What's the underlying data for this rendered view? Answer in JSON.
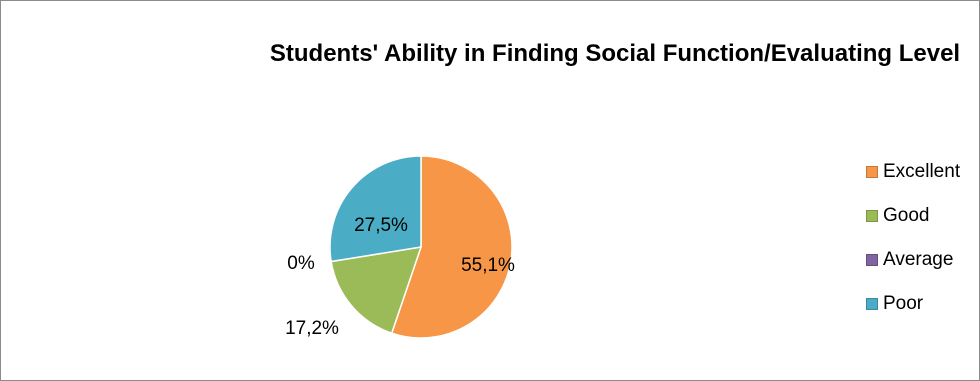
{
  "chart_data": {
    "type": "pie",
    "title": "Students' Ability in Finding Social Function/Evaluating Level",
    "categories": [
      "Excellent",
      "Good",
      "Average",
      "Poor"
    ],
    "values": [
      55.1,
      17.2,
      0,
      27.5
    ],
    "data_labels": [
      "55,1%",
      "17,2%",
      "0%",
      "27,5%"
    ],
    "colors": [
      "#f79646",
      "#9bbb59",
      "#8064a2",
      "#4bacc6"
    ],
    "legend_position": "right"
  }
}
